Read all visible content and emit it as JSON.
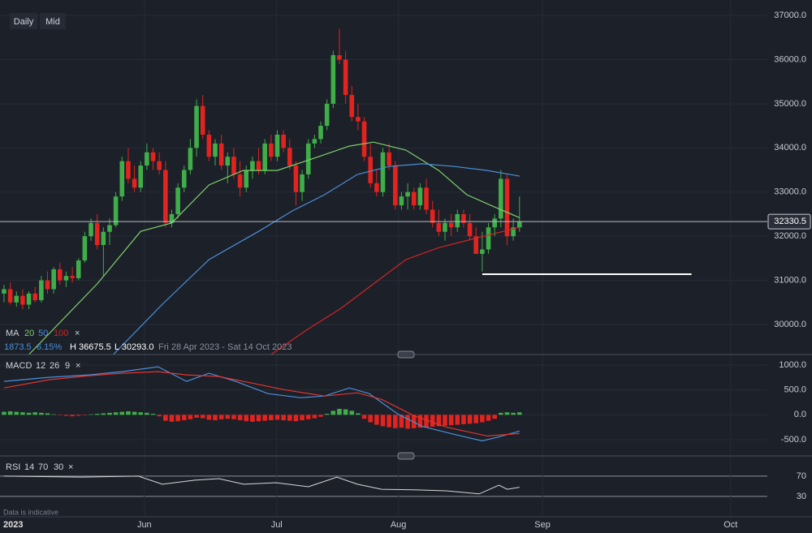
{
  "toolbar": {
    "buttons": [
      "Daily",
      "Mid"
    ]
  },
  "chart_data": [
    {
      "type": "candlestick",
      "xlim": [
        -0.65,
        130.1
      ],
      "ylim": [
        29320,
        37350
      ],
      "yticks": [
        {
          "value": 30000,
          "label": "30000.0"
        },
        {
          "value": 31000,
          "label": "31000.0"
        },
        {
          "value": 32000,
          "label": "32000.0"
        },
        {
          "value": 33000,
          "label": "33000.0"
        },
        {
          "value": 34000,
          "label": "34000.0"
        },
        {
          "value": 35000,
          "label": "35000.0"
        },
        {
          "value": 36000,
          "label": "36000.0"
        },
        {
          "value": 37000,
          "label": "37000.0"
        }
      ],
      "grid": true,
      "up_color": "#3fae49",
      "down_color": "#e3231f",
      "ohlc": [
        [
          30700,
          30900,
          30500,
          30800
        ],
        [
          30800,
          30950,
          30450,
          30500
        ],
        [
          30500,
          30750,
          30400,
          30650
        ],
        [
          30650,
          30800,
          30350,
          30450
        ],
        [
          30450,
          30750,
          30350,
          30700
        ],
        [
          30700,
          30850,
          30500,
          30550
        ],
        [
          30550,
          31100,
          30500,
          31000
        ],
        [
          31000,
          31200,
          30700,
          30800
        ],
        [
          30800,
          31300,
          30700,
          31250
        ],
        [
          31250,
          31400,
          30900,
          31000
        ],
        [
          31000,
          31200,
          30850,
          31100
        ],
        [
          31100,
          31300,
          30950,
          31050
        ],
        [
          31050,
          31500,
          31000,
          31450
        ],
        [
          31450,
          32100,
          31400,
          32000
        ],
        [
          32000,
          32400,
          31900,
          32300
        ],
        [
          32300,
          32500,
          31700,
          31800
        ],
        [
          31800,
          32200,
          31100,
          32100
        ],
        [
          32100,
          32400,
          31800,
          32250
        ],
        [
          32250,
          33000,
          32200,
          32900
        ],
        [
          32900,
          33800,
          32800,
          33700
        ],
        [
          33700,
          34000,
          33200,
          33300
        ],
        [
          33300,
          33600,
          33000,
          33100
        ],
        [
          33100,
          33700,
          33000,
          33600
        ],
        [
          33600,
          34100,
          33500,
          33900
        ],
        [
          33900,
          34000,
          33500,
          33700
        ],
        [
          33700,
          33900,
          33400,
          33500
        ],
        [
          33500,
          33700,
          32200,
          32300
        ],
        [
          32300,
          32600,
          32200,
          32500
        ],
        [
          32500,
          33200,
          32400,
          33100
        ],
        [
          33100,
          33600,
          33000,
          33500
        ],
        [
          33500,
          34200,
          33400,
          34000
        ],
        [
          34000,
          35100,
          33800,
          34950
        ],
        [
          34950,
          35200,
          34200,
          34300
        ],
        [
          34300,
          34400,
          33700,
          33800
        ],
        [
          33800,
          34200,
          33600,
          34100
        ],
        [
          34100,
          34300,
          33500,
          33600
        ],
        [
          33600,
          33900,
          33200,
          33800
        ],
        [
          33800,
          34000,
          33300,
          33400
        ],
        [
          33400,
          33700,
          32900,
          33100
        ],
        [
          33100,
          33600,
          33000,
          33500
        ],
        [
          33500,
          33800,
          33300,
          33700
        ],
        [
          33700,
          34000,
          33400,
          33500
        ],
        [
          33500,
          34200,
          33400,
          34100
        ],
        [
          34100,
          34300,
          33700,
          33800
        ],
        [
          33800,
          34400,
          33700,
          34300
        ],
        [
          34300,
          34400,
          33900,
          34000
        ],
        [
          34000,
          34200,
          33500,
          33600
        ],
        [
          33600,
          33700,
          32700,
          33000
        ],
        [
          33000,
          33500,
          32800,
          33400
        ],
        [
          33400,
          34200,
          33300,
          34100
        ],
        [
          34100,
          34300,
          34000,
          34200
        ],
        [
          34200,
          34600,
          34100,
          34500
        ],
        [
          34500,
          35100,
          34400,
          35000
        ],
        [
          35000,
          36200,
          34900,
          36100
        ],
        [
          36100,
          36700,
          35900,
          36000
        ],
        [
          36000,
          36200,
          35000,
          35200
        ],
        [
          35200,
          35400,
          34600,
          34700
        ],
        [
          34700,
          35000,
          34400,
          34600
        ],
        [
          34600,
          34700,
          33700,
          33800
        ],
        [
          33800,
          34100,
          33100,
          33200
        ],
        [
          33200,
          33500,
          32900,
          33000
        ],
        [
          33000,
          34000,
          32900,
          33900
        ],
        [
          33900,
          34100,
          33500,
          33600
        ],
        [
          33600,
          33700,
          32600,
          32700
        ],
        [
          32700,
          33000,
          32600,
          32900
        ],
        [
          32900,
          33200,
          32600,
          33000
        ],
        [
          33000,
          33100,
          32600,
          32700
        ],
        [
          32700,
          33200,
          32600,
          33100
        ],
        [
          33100,
          33300,
          32500,
          32600
        ],
        [
          32600,
          32800,
          32200,
          32300
        ],
        [
          32300,
          32600,
          32000,
          32100
        ],
        [
          32100,
          32400,
          31900,
          32300
        ],
        [
          32300,
          32500,
          32000,
          32200
        ],
        [
          32200,
          32600,
          32100,
          32500
        ],
        [
          32500,
          32600,
          32200,
          32300
        ],
        [
          32300,
          32500,
          31900,
          32000
        ],
        [
          32000,
          32200,
          31600,
          31600
        ],
        [
          31600,
          32100,
          31200,
          31700
        ],
        [
          31700,
          32300,
          31600,
          32200
        ],
        [
          32200,
          32500,
          32000,
          32400
        ],
        [
          32400,
          33500,
          32200,
          33300
        ],
        [
          33300,
          33400,
          31800,
          32000
        ],
        [
          32000,
          32400,
          31900,
          32200
        ],
        [
          32200,
          32900,
          32100,
          32330
        ]
      ],
      "legend_title": "MA",
      "series": [
        {
          "name": "20",
          "color": "#7fd16c",
          "x": [
            4,
            15,
            22,
            27,
            33,
            38.5,
            44,
            50,
            55.6,
            59.5,
            64.7,
            70,
            74.5,
            79,
            83
          ],
          "values": [
            29320,
            30920,
            32110,
            32300,
            33160,
            33490,
            33490,
            33770,
            34040,
            34130,
            33950,
            33490,
            32940,
            32660,
            32420
          ]
        },
        {
          "name": "50",
          "color": "#4b90d9",
          "x": [
            17.6,
            25.5,
            33,
            41,
            46.4,
            51.6,
            56.9,
            62,
            67.3,
            72.5,
            77.8,
            83
          ],
          "values": [
            29320,
            30460,
            31470,
            32110,
            32570,
            32940,
            33400,
            33580,
            33640,
            33580,
            33490,
            33360
          ]
        },
        {
          "name": "100",
          "color": "#d42424",
          "x": [
            43,
            49,
            54.2,
            59.5,
            64.7,
            70,
            75,
            80.4,
            83
          ],
          "values": [
            29320,
            29900,
            30360,
            30920,
            31470,
            31740,
            31920,
            32110,
            32200
          ]
        }
      ],
      "close_label": "×",
      "stats": [
        "1873.5",
        "6.15%",
        "H 36675.5",
        "L 30293.0",
        "Fri 28 Apr 2023 - Sat 14 Oct 2023"
      ],
      "last_price": 32330.5,
      "support_line": {
        "value": 31140,
        "x": [
          77,
          110.7
        ],
        "color": "#ffffff"
      }
    },
    {
      "type": "macd",
      "title": "MACD",
      "params": [
        12,
        26,
        9
      ],
      "close_label": "×",
      "xlim": [
        -0.65,
        130.1
      ],
      "ylim": [
        -795,
        1164
      ],
      "yticks": [
        {
          "value": 1000,
          "label": "1000.0"
        },
        {
          "value": 500,
          "label": "500.0"
        },
        {
          "value": 0,
          "label": "0.0"
        },
        {
          "value": -500,
          "label": "-500.0"
        }
      ],
      "grid": true,
      "up_color": "#3fae49",
      "down_color": "#e3231f",
      "histogram": [
        60,
        70,
        60,
        50,
        40,
        50,
        40,
        30,
        10,
        -10,
        -20,
        -30,
        -20,
        -10,
        10,
        20,
        30,
        40,
        50,
        60,
        70,
        60,
        50,
        40,
        20,
        -30,
        -120,
        -140,
        -130,
        -110,
        -90,
        -60,
        -70,
        -100,
        -110,
        -90,
        -80,
        -90,
        -110,
        -130,
        -140,
        -130,
        -120,
        -110,
        -100,
        -110,
        -120,
        -130,
        -110,
        -90,
        -70,
        -40,
        20,
        80,
        120,
        110,
        80,
        30,
        -80,
        -150,
        -200,
        -230,
        -250,
        -270,
        -260,
        -280,
        -270,
        -260,
        -250,
        -240,
        -230,
        -220,
        -210,
        -200,
        -190,
        -180,
        -170,
        -150,
        -120,
        -80,
        40,
        50,
        40,
        50
      ],
      "series": [
        {
          "color": "#4b90d9",
          "x": [
            0,
            7.2,
            13.7,
            19,
            24.8,
            29.4,
            33,
            37.3,
            42.5,
            47.7,
            51.6,
            55.6,
            58.8,
            63.4,
            67.3,
            72.5,
            77,
            79.7,
            83
          ],
          "values": [
            672,
            754,
            803,
            869,
            967,
            672,
            836,
            672,
            426,
            344,
            377,
            541,
            426,
            16,
            -230,
            -393,
            -525,
            -443,
            -328
          ]
        },
        {
          "color": "#e3352f",
          "x": [
            0,
            7.2,
            13.7,
            19,
            24.8,
            29.4,
            34.6,
            39.9,
            45,
            51.6,
            56.9,
            60.8,
            66,
            71.2,
            77.8,
            83
          ],
          "values": [
            541,
            705,
            787,
            836,
            869,
            803,
            770,
            639,
            508,
            377,
            443,
            311,
            -16,
            -246,
            -426,
            -377
          ]
        }
      ]
    },
    {
      "type": "line",
      "title": "RSI",
      "params": [
        14,
        70,
        30
      ],
      "close_label": "×",
      "xlim": [
        -0.65,
        130.1
      ],
      "ylim": [
        1,
        105
      ],
      "yticks": [
        70,
        30
      ],
      "grid": true,
      "series": [
        {
          "color": "#d8d8d8",
          "x": [
            0,
            12.4,
            21.6,
            25.5,
            30.7,
            34.6,
            38.6,
            43.8,
            49,
            53.6,
            56.9,
            60.8,
            66,
            71.2,
            76.5,
            79.7,
            81,
            83
          ],
          "values": [
            70,
            68,
            70,
            54,
            62,
            65,
            54,
            57,
            49,
            68,
            54,
            44,
            43,
            41,
            35,
            52,
            44,
            48
          ]
        }
      ],
      "xticks": [
        {
          "value": 22.6,
          "label": "Jun"
        },
        {
          "value": 43.9,
          "label": "Jul"
        },
        {
          "value": 63.5,
          "label": "Aug"
        },
        {
          "value": 86.7,
          "label": "Sep"
        },
        {
          "value": 117,
          "label": "Oct"
        }
      ],
      "year_label": "2023",
      "note": "Data is indicative"
    }
  ]
}
